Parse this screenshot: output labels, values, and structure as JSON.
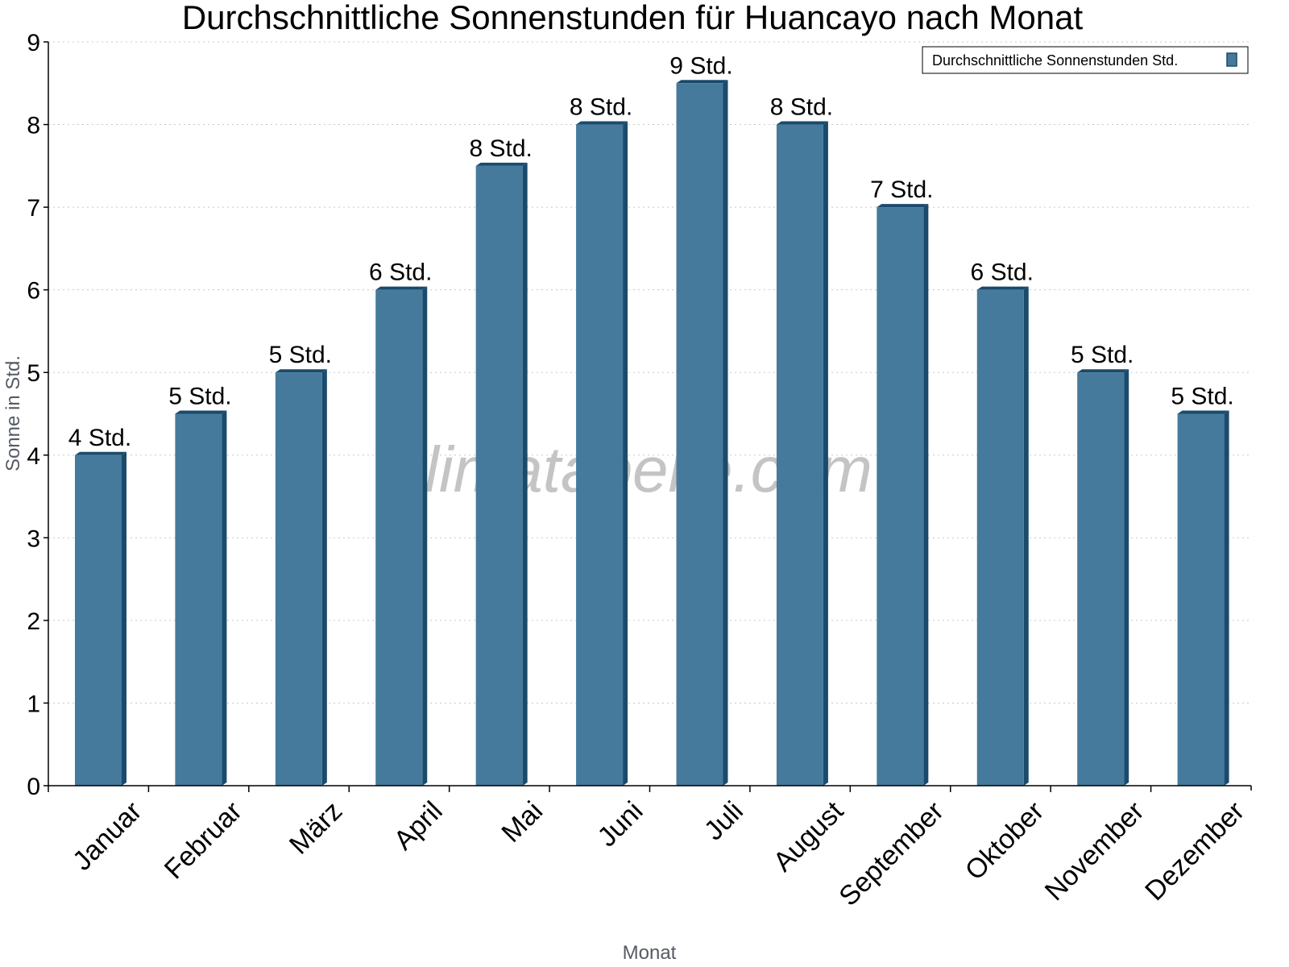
{
  "chart_data": {
    "type": "bar",
    "title": "Durchschnittliche Sonnenstunden für Huancayo nach Monat",
    "xlabel": "Monat",
    "ylabel": "Sonne in Std.",
    "ylim": [
      0,
      9
    ],
    "yticks": [
      0,
      1,
      2,
      3,
      4,
      5,
      6,
      7,
      8,
      9
    ],
    "grid": true,
    "legend_position": "top-right",
    "categories": [
      "Januar",
      "Februar",
      "März",
      "April",
      "Mai",
      "Juni",
      "Juli",
      "August",
      "September",
      "Oktober",
      "November",
      "Dezember"
    ],
    "series": [
      {
        "name": "Durchschnittliche Sonnenstunden Std.",
        "values": [
          4.0,
          4.5,
          5.0,
          6.0,
          7.5,
          8.0,
          8.5,
          8.0,
          7.0,
          6.0,
          5.0,
          4.5
        ],
        "labels": [
          "4 Std.",
          "5 Std.",
          "5 Std.",
          "6 Std.",
          "8 Std.",
          "8 Std.",
          "9 Std.",
          "8 Std.",
          "7 Std.",
          "6 Std.",
          "5 Std.",
          "5 Std."
        ],
        "color": "#467a9c",
        "side_color": "#1a4b6c"
      }
    ],
    "watermark": "klimatabelle.com"
  }
}
